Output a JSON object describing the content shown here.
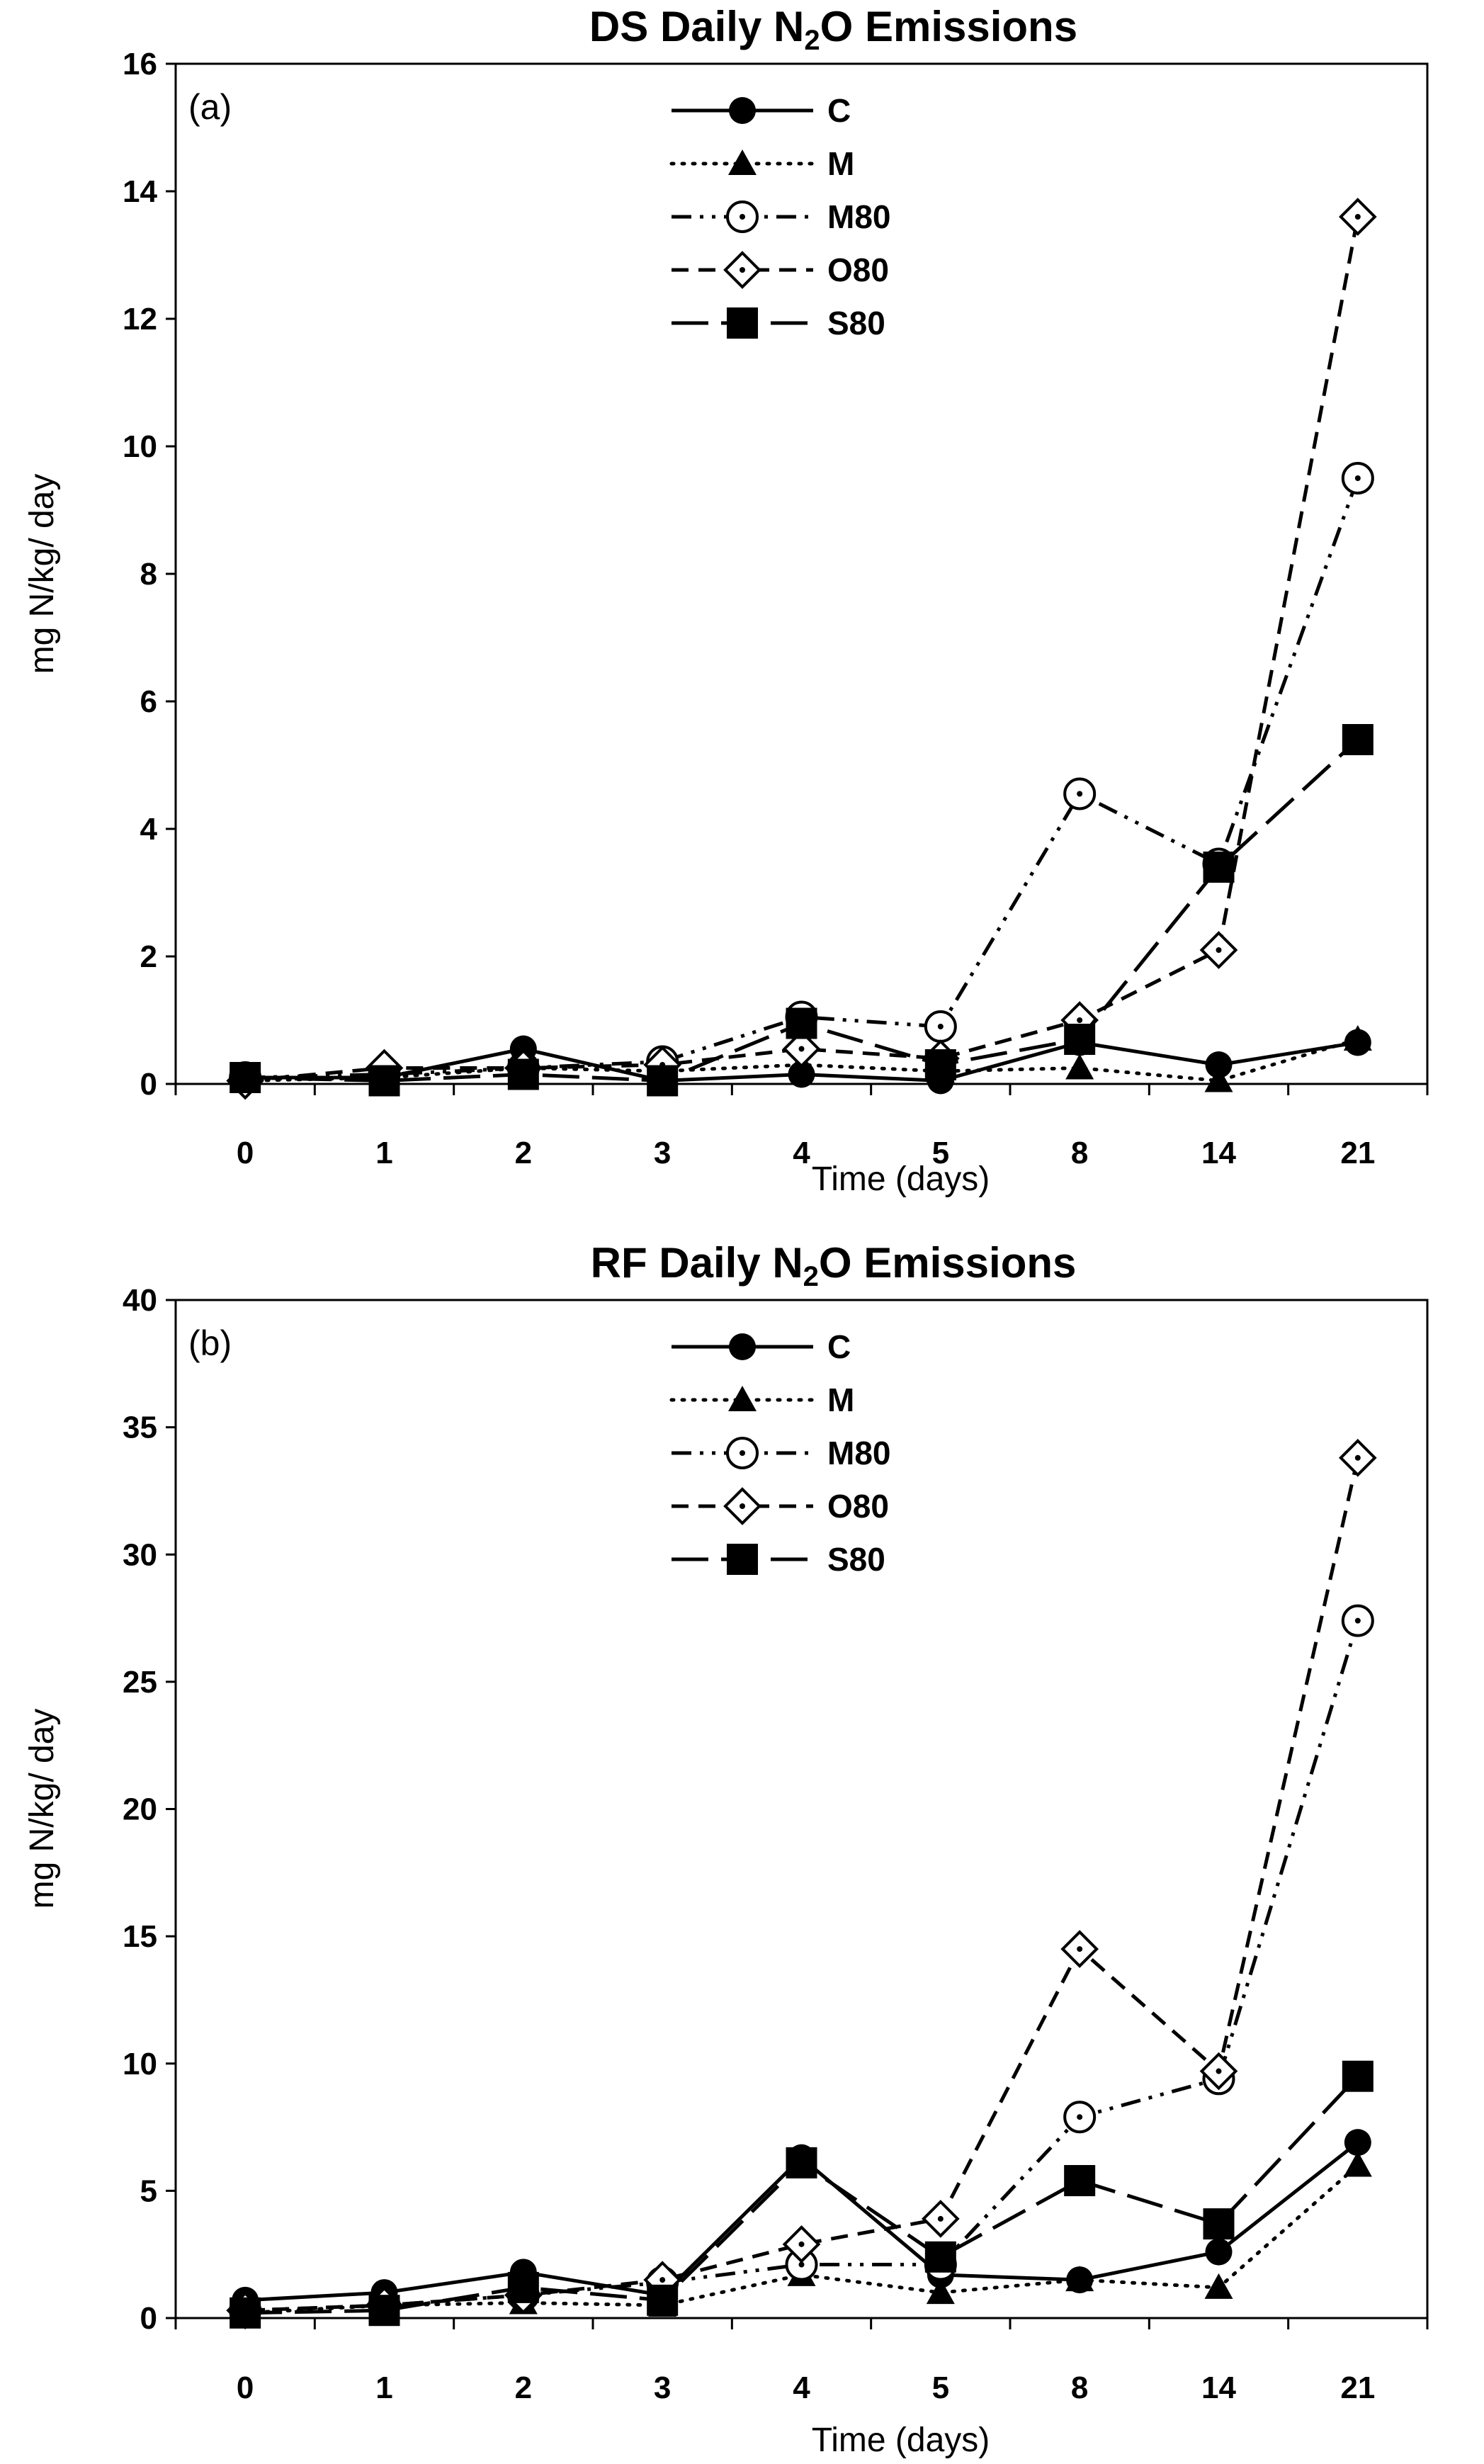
{
  "chart_data": [
    {
      "type": "line",
      "panel_label": "(a)",
      "title": "DS Daily N",
      "title_sub": "2",
      "title_end": "O Emissions",
      "xlabel": "Time (days)",
      "ylabel": "mg N/kg/ day",
      "categories": [
        "0",
        "1",
        "2",
        "3",
        "4",
        "5",
        "8",
        "14",
        "21"
      ],
      "ylim": [
        0,
        16
      ],
      "yticks": [
        0,
        2,
        4,
        6,
        8,
        10,
        12,
        14,
        16
      ],
      "ytick_labels": [
        "0",
        "2",
        "4",
        "6",
        "8",
        "10",
        "12",
        "14",
        "16"
      ],
      "legend_position": "top-center",
      "series": [
        {
          "name": "C",
          "marker": "filled-circle",
          "dash": "solid",
          "values": [
            0.1,
            0.1,
            0.55,
            0.05,
            0.15,
            0.05,
            0.65,
            0.3,
            0.65
          ]
        },
        {
          "name": "M",
          "marker": "filled-triangle",
          "dash": "dotted",
          "values": [
            0.05,
            0.1,
            0.25,
            0.2,
            0.3,
            0.2,
            0.25,
            0.05,
            0.7
          ]
        },
        {
          "name": "M80",
          "marker": "open-circle-dot",
          "dash": "dash-dot-dot",
          "values": [
            0.1,
            0.15,
            0.25,
            0.35,
            1.05,
            0.9,
            4.55,
            3.45,
            9.5
          ]
        },
        {
          "name": "O80",
          "marker": "open-diamond-dot",
          "dash": "dashed",
          "values": [
            0.05,
            0.25,
            0.25,
            0.3,
            0.55,
            0.4,
            1.0,
            2.1,
            13.6
          ]
        },
        {
          "name": "S80",
          "marker": "filled-square",
          "dash": "long-dash",
          "values": [
            0.1,
            0.05,
            0.15,
            0.05,
            0.95,
            0.3,
            0.7,
            3.4,
            5.4
          ]
        }
      ]
    },
    {
      "type": "line",
      "panel_label": "(b)",
      "title": "RF Daily N",
      "title_sub": "2",
      "title_end": "O Emissions",
      "xlabel": "Time (days)",
      "ylabel": "mg N/kg/ day",
      "categories": [
        "0",
        "1",
        "2",
        "3",
        "4",
        "5",
        "8",
        "14",
        "21"
      ],
      "ylim": [
        0,
        40
      ],
      "yticks": [
        0,
        5,
        10,
        15,
        20,
        25,
        30,
        35,
        40
      ],
      "ytick_labels": [
        "0",
        "5",
        "10",
        "15",
        "20",
        "25",
        "30",
        "35",
        "40"
      ],
      "legend_position": "top-center",
      "series": [
        {
          "name": "C",
          "marker": "filled-circle",
          "dash": "solid",
          "values": [
            0.7,
            1.0,
            1.8,
            0.9,
            6.3,
            1.7,
            1.5,
            2.6,
            6.9
          ]
        },
        {
          "name": "M",
          "marker": "filled-triangle",
          "dash": "dotted",
          "values": [
            0.2,
            0.5,
            0.6,
            0.5,
            1.7,
            1.0,
            1.5,
            1.2,
            6.0
          ]
        },
        {
          "name": "M80",
          "marker": "open-circle-dot",
          "dash": "dash-dot-dot",
          "values": [
            0.3,
            0.5,
            0.9,
            1.4,
            2.1,
            2.1,
            7.9,
            9.4,
            27.4
          ]
        },
        {
          "name": "O80",
          "marker": "open-diamond-dot",
          "dash": "dashed",
          "values": [
            0.3,
            0.5,
            0.9,
            1.5,
            2.9,
            3.9,
            14.5,
            9.7,
            33.8
          ]
        },
        {
          "name": "S80",
          "marker": "filled-square",
          "dash": "long-dash",
          "values": [
            0.2,
            0.3,
            1.2,
            0.7,
            6.1,
            2.4,
            5.4,
            3.7,
            9.5
          ]
        }
      ]
    }
  ]
}
